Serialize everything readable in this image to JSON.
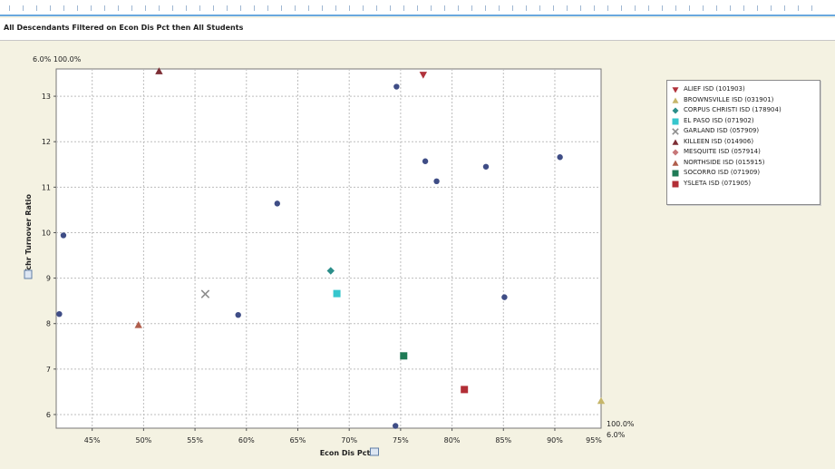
{
  "title": "All Descendants Filtered on Econ Dis Pct then All Students",
  "chart_data": {
    "type": "scatter",
    "xlabel": "Econ Dis Pct",
    "ylabel": "Tchr Turnover Ratio",
    "xlim": [
      41.5,
      94.5
    ],
    "ylim": [
      5.7,
      13.6
    ],
    "x_ticks": [
      "45%",
      "50%",
      "55%",
      "60%",
      "65%",
      "70%",
      "75%",
      "80%",
      "85%",
      "90%",
      "95%"
    ],
    "x_tick_values": [
      45,
      50,
      55,
      60,
      65,
      70,
      75,
      80,
      85,
      90,
      95
    ],
    "y_ticks": [
      "6",
      "7",
      "8",
      "9",
      "10",
      "11",
      "12",
      "13"
    ],
    "y_tick_values": [
      6,
      7,
      8,
      9,
      10,
      11,
      12,
      13
    ],
    "corner_labels": {
      "top_left": "6.0%  100.0%",
      "bottom_right_top": "100.0%",
      "bottom_right_bottom": "6.0%"
    },
    "grid": true,
    "legend_position": "right",
    "series": [
      {
        "name": "ALIEF ISD (101903)",
        "marker": "tri-down",
        "color": "#b1323b",
        "points": [
          [
            77.2,
            13.47
          ]
        ]
      },
      {
        "name": "BROWNSVILLE ISD (031901)",
        "marker": "tri-up",
        "color": "#c6b66a",
        "points": [
          [
            94.5,
            6.3
          ]
        ]
      },
      {
        "name": "CORPUS CHRISTI ISD (178904)",
        "marker": "diamond",
        "color": "#2b8e8a",
        "points": [
          [
            68.2,
            9.16
          ]
        ]
      },
      {
        "name": "EL PASO ISD (071902)",
        "marker": "square",
        "color": "#36c6cd",
        "points": [
          [
            68.8,
            8.66
          ]
        ]
      },
      {
        "name": "GARLAND ISD (057909)",
        "marker": "x",
        "color": "#8d8d8d",
        "points": [
          [
            56.0,
            8.65
          ]
        ]
      },
      {
        "name": "KILLEEN ISD (014906)",
        "marker": "tri-up",
        "color": "#7d2e35",
        "points": [
          [
            51.5,
            13.55
          ]
        ]
      },
      {
        "name": "MESQUITE ISD (057914)",
        "marker": "diamond",
        "color": "#c77779",
        "points": []
      },
      {
        "name": "NORTHSIDE ISD (015915)",
        "marker": "tri-up",
        "color": "#b05e4c",
        "points": [
          [
            49.5,
            7.97
          ]
        ]
      },
      {
        "name": "SOCORRO ISD (071909)",
        "marker": "square",
        "color": "#1f7b56",
        "points": [
          [
            75.3,
            7.29
          ]
        ]
      },
      {
        "name": "YSLETA ISD (071905)",
        "marker": "square",
        "color": "#b22e36",
        "points": [
          [
            81.2,
            6.55
          ]
        ]
      }
    ],
    "unlabeled_points": {
      "color": "#3f4d86",
      "points": [
        [
          41.8,
          8.21
        ],
        [
          42.2,
          9.94
        ],
        [
          59.2,
          8.19
        ],
        [
          63.0,
          10.64
        ],
        [
          74.6,
          13.21
        ],
        [
          77.4,
          11.57
        ],
        [
          78.5,
          11.13
        ],
        [
          83.3,
          11.45
        ],
        [
          85.1,
          8.58
        ],
        [
          90.5,
          11.66
        ],
        [
          74.5,
          5.75
        ]
      ]
    }
  }
}
